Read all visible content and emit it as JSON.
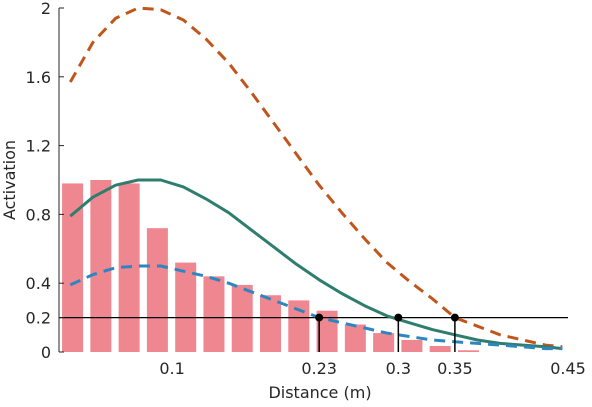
{
  "chart_data": {
    "type": "bar",
    "title": "",
    "xlabel": "Distance (m)",
    "ylabel": "Activation",
    "xlim": [
      0,
      0.45
    ],
    "ylim": [
      0,
      2
    ],
    "x_ticks": [
      0.1,
      0.23,
      0.3,
      0.35,
      0.45
    ],
    "x_tick_labels": [
      "0.1",
      "0.23",
      "0.3",
      "0.35",
      "0.45"
    ],
    "y_ticks": [
      0,
      0.2,
      0.4,
      0.8,
      1.2,
      1.6,
      2
    ],
    "y_tick_labels": [
      "0",
      "0.2",
      "0.4",
      "0.8",
      "1.2",
      "1.6",
      "2"
    ],
    "grid": false,
    "legend": "none",
    "bars": {
      "color": "#ef8790",
      "x": [
        0.012,
        0.037,
        0.062,
        0.087,
        0.112,
        0.137,
        0.162,
        0.187,
        0.212,
        0.237,
        0.262,
        0.287,
        0.312,
        0.337,
        0.362,
        0.387,
        0.412,
        0.437
      ],
      "values": [
        0.98,
        1.0,
        0.98,
        0.72,
        0.52,
        0.44,
        0.39,
        0.33,
        0.3,
        0.24,
        0.16,
        0.11,
        0.07,
        0.035,
        0.01,
        0.0,
        0.0,
        0.0
      ]
    },
    "series": [
      {
        "style": "dashed",
        "color": "#c0561c",
        "x": [
          0.01,
          0.03,
          0.05,
          0.07,
          0.09,
          0.11,
          0.13,
          0.15,
          0.17,
          0.19,
          0.21,
          0.23,
          0.25,
          0.27,
          0.29,
          0.31,
          0.33,
          0.35,
          0.37,
          0.39,
          0.41,
          0.43,
          0.445
        ],
        "values": [
          1.57,
          1.8,
          1.94,
          2.0,
          1.99,
          1.93,
          1.82,
          1.68,
          1.51,
          1.33,
          1.15,
          0.97,
          0.81,
          0.66,
          0.52,
          0.41,
          0.31,
          0.2,
          0.15,
          0.1,
          0.07,
          0.04,
          0.03
        ]
      },
      {
        "style": "solid",
        "color": "#2e7d6e",
        "x": [
          0.01,
          0.03,
          0.05,
          0.07,
          0.09,
          0.11,
          0.13,
          0.15,
          0.17,
          0.19,
          0.21,
          0.23,
          0.25,
          0.27,
          0.29,
          0.31,
          0.33,
          0.35,
          0.37,
          0.39,
          0.41,
          0.43,
          0.445
        ],
        "values": [
          0.79,
          0.9,
          0.97,
          1.0,
          1.0,
          0.96,
          0.89,
          0.81,
          0.71,
          0.61,
          0.51,
          0.42,
          0.34,
          0.27,
          0.21,
          0.17,
          0.13,
          0.1,
          0.07,
          0.05,
          0.04,
          0.03,
          0.02
        ]
      },
      {
        "style": "dashed",
        "color": "#2e86c1",
        "x": [
          0.01,
          0.03,
          0.05,
          0.07,
          0.09,
          0.11,
          0.13,
          0.15,
          0.17,
          0.19,
          0.21,
          0.23,
          0.25,
          0.27,
          0.29,
          0.31,
          0.33,
          0.35,
          0.37,
          0.39,
          0.41,
          0.43,
          0.445
        ],
        "values": [
          0.39,
          0.45,
          0.49,
          0.5,
          0.5,
          0.47,
          0.44,
          0.4,
          0.35,
          0.3,
          0.25,
          0.2,
          0.17,
          0.14,
          0.11,
          0.09,
          0.07,
          0.06,
          0.05,
          0.04,
          0.03,
          0.02,
          0.02
        ]
      }
    ],
    "threshold": {
      "y": 0.2,
      "color": "#000000"
    },
    "markers": {
      "color": "#000000",
      "x": [
        0.23,
        0.3,
        0.35
      ],
      "y": [
        0.2,
        0.2,
        0.2
      ]
    }
  }
}
